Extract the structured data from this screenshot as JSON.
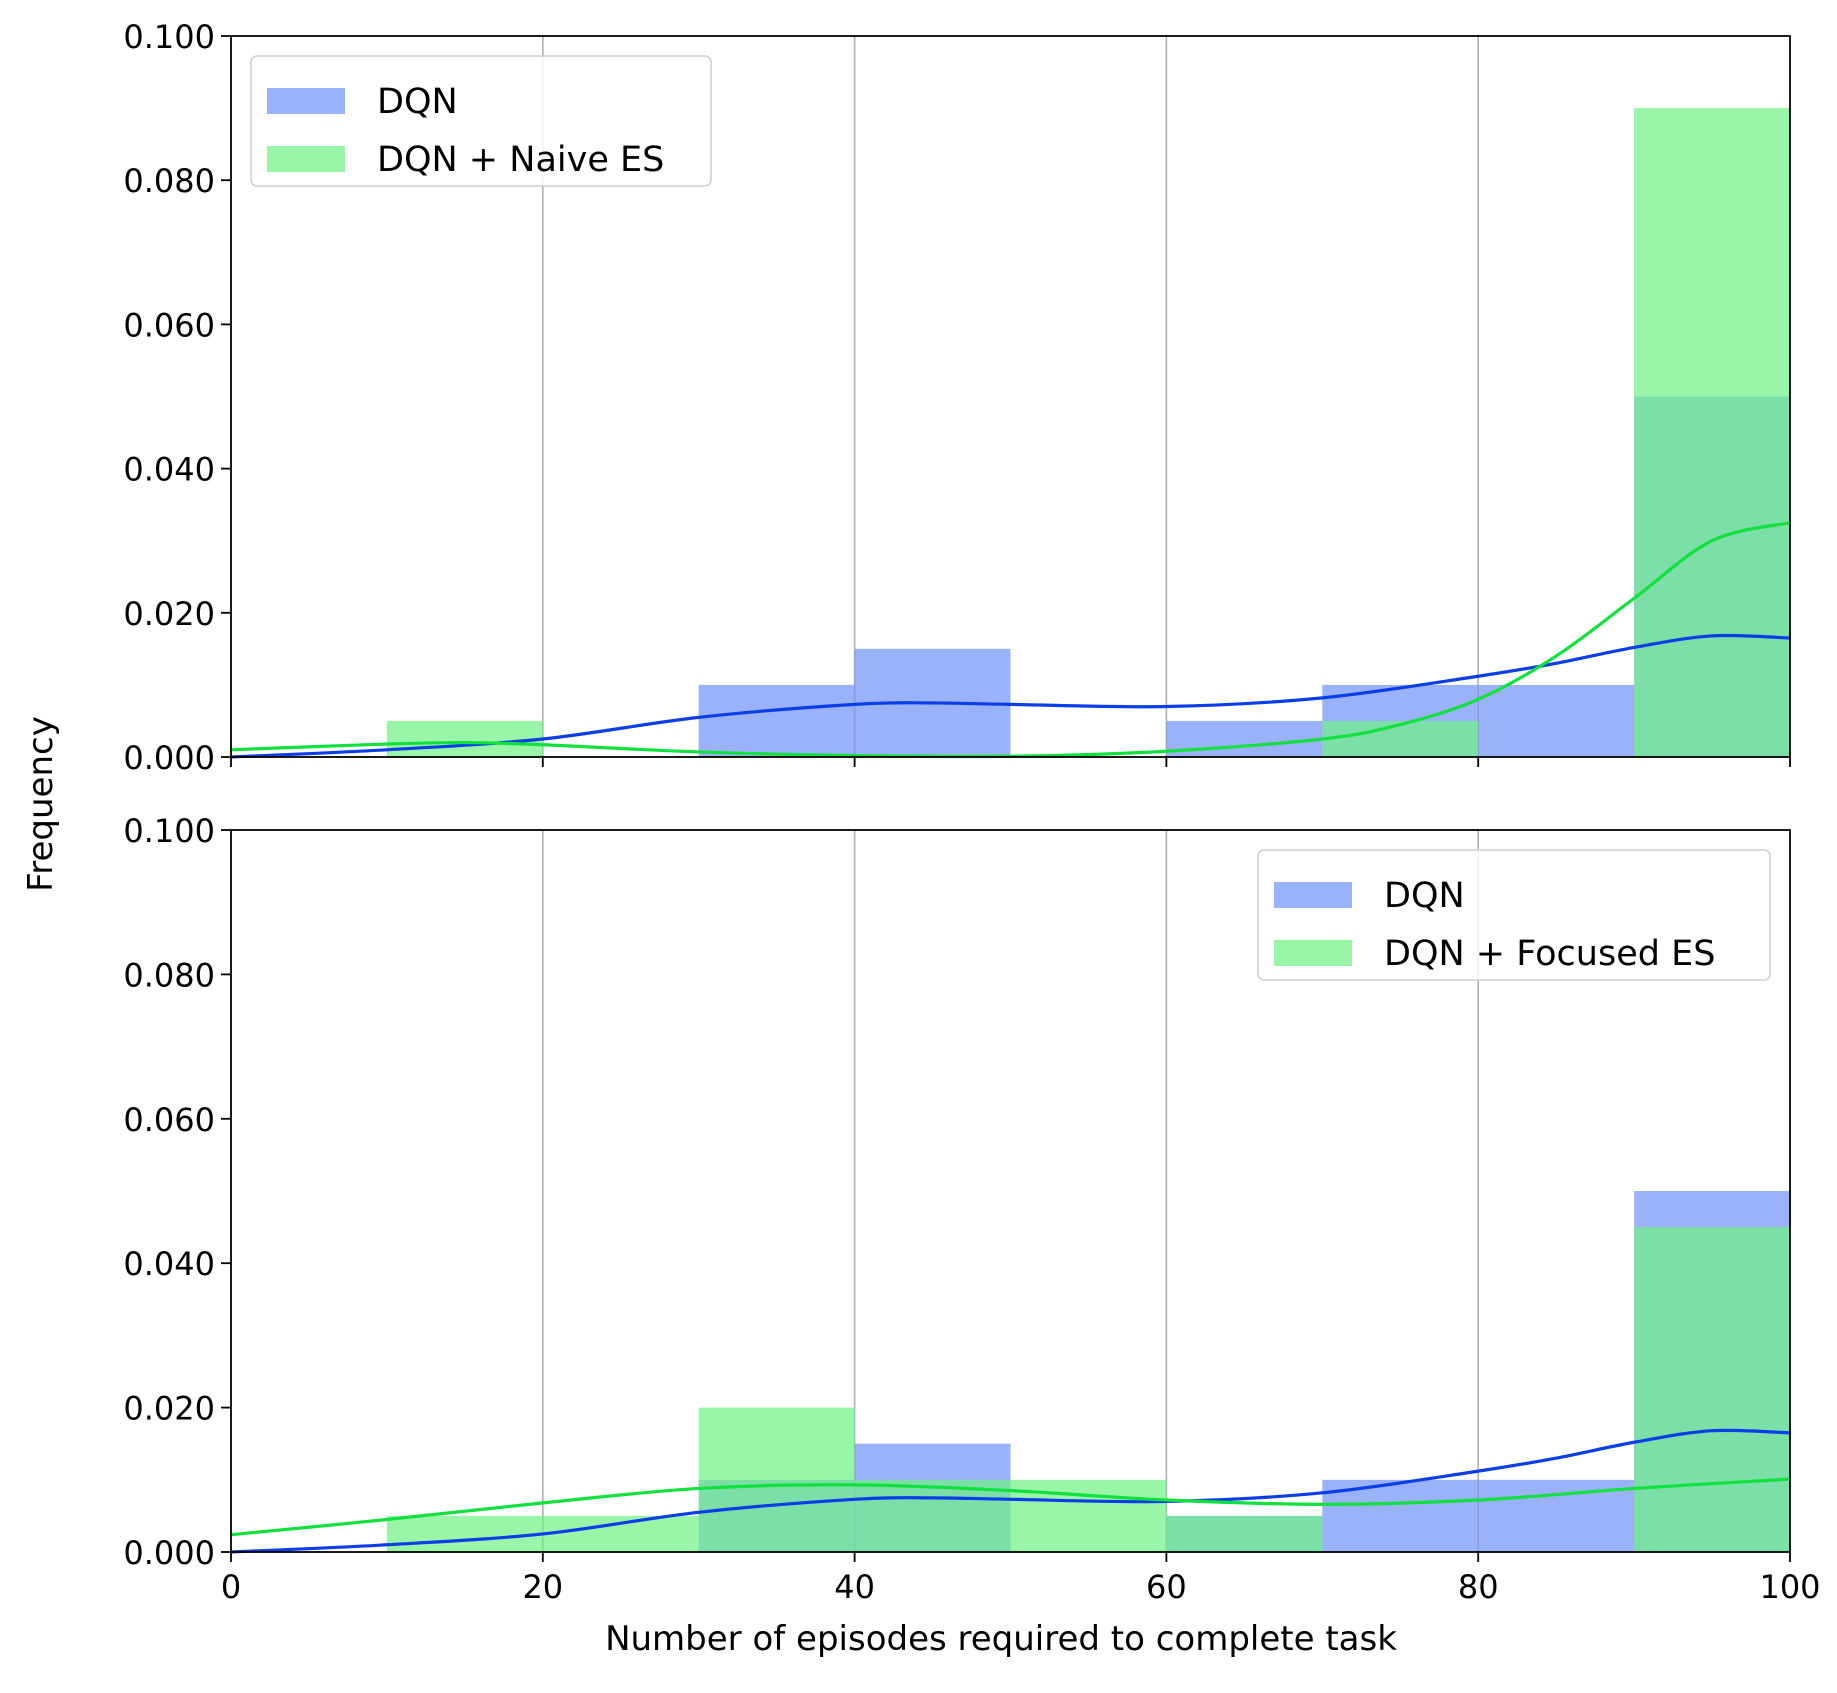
{
  "chart_data": [
    {
      "type": "histogram",
      "panel": "top",
      "bins": [
        [
          0,
          10
        ],
        [
          10,
          20
        ],
        [
          20,
          30
        ],
        [
          30,
          40
        ],
        [
          40,
          50
        ],
        [
          50,
          60
        ],
        [
          60,
          70
        ],
        [
          70,
          80
        ],
        [
          80,
          90
        ],
        [
          90,
          100
        ]
      ],
      "series": [
        {
          "name": "DQN",
          "color": "#6f91f7",
          "values": [
            0.0,
            0.0,
            0.0,
            0.01,
            0.015,
            0.0,
            0.005,
            0.01,
            0.01,
            0.05
          ],
          "kde": {
            "color": "#0b3ee6",
            "x": [
              0,
              10,
              20,
              30,
              40,
              45,
              50,
              60,
              70,
              80,
              85,
              90,
              95,
              100
            ],
            "y": [
              0.0,
              0.001,
              0.0025,
              0.0055,
              0.0073,
              0.0075,
              0.0073,
              0.007,
              0.0082,
              0.0112,
              0.013,
              0.0152,
              0.0168,
              0.0165
            ]
          }
        },
        {
          "name": "DQN + Naive ES",
          "color": "#6ef285",
          "values": [
            0.0,
            0.005,
            0.0,
            0.0,
            0.0,
            0.0,
            0.0,
            0.005,
            0.0,
            0.09
          ],
          "kde": {
            "color": "#12e03f",
            "x": [
              0,
              10,
              15,
              20,
              30,
              40,
              50,
              60,
              70,
              75,
              80,
              85,
              90,
              95,
              100
            ],
            "y": [
              0.001,
              0.0018,
              0.002,
              0.0017,
              0.0007,
              0.0002,
              0.0001,
              0.0008,
              0.0025,
              0.0045,
              0.008,
              0.014,
              0.022,
              0.03,
              0.0325
            ]
          }
        }
      ],
      "legend": {
        "position": "upper-left",
        "entries": [
          "DQN",
          "DQN + Naive ES"
        ]
      },
      "xlim": [
        0,
        100
      ],
      "ylim": [
        0,
        0.1
      ],
      "xticks": [
        0,
        20,
        40,
        60,
        80,
        100
      ],
      "yticks": [
        "0.000",
        "0.020",
        "0.040",
        "0.060",
        "0.080",
        "0.100"
      ],
      "show_xtick_labels": false,
      "grid": "x"
    },
    {
      "type": "histogram",
      "panel": "bottom",
      "bins": [
        [
          0,
          10
        ],
        [
          10,
          20
        ],
        [
          20,
          30
        ],
        [
          30,
          40
        ],
        [
          40,
          50
        ],
        [
          50,
          60
        ],
        [
          60,
          70
        ],
        [
          70,
          80
        ],
        [
          80,
          90
        ],
        [
          90,
          100
        ]
      ],
      "series": [
        {
          "name": "DQN",
          "color": "#6f91f7",
          "values": [
            0.0,
            0.0,
            0.0,
            0.01,
            0.015,
            0.0,
            0.005,
            0.01,
            0.01,
            0.05
          ],
          "kde": {
            "color": "#0b3ee6",
            "x": [
              0,
              10,
              20,
              30,
              40,
              45,
              50,
              60,
              70,
              80,
              85,
              90,
              95,
              100
            ],
            "y": [
              0.0,
              0.001,
              0.0025,
              0.0055,
              0.0073,
              0.0075,
              0.0073,
              0.007,
              0.0082,
              0.0112,
              0.013,
              0.0152,
              0.0168,
              0.0165
            ]
          }
        },
        {
          "name": "DQN + Focused ES",
          "color": "#6ef285",
          "values": [
            0.0,
            0.005,
            0.005,
            0.02,
            0.01,
            0.01,
            0.005,
            0.0,
            0.0,
            0.045
          ],
          "kde": {
            "color": "#12e03f",
            "x": [
              0,
              10,
              20,
              30,
              40,
              50,
              60,
              70,
              80,
              90,
              100
            ],
            "y": [
              0.0024,
              0.0045,
              0.0068,
              0.0088,
              0.0093,
              0.0085,
              0.0072,
              0.0066,
              0.0072,
              0.0088,
              0.0101
            ]
          }
        }
      ],
      "legend": {
        "position": "upper-right",
        "entries": [
          "DQN",
          "DQN + Focused ES"
        ]
      },
      "xlim": [
        0,
        100
      ],
      "ylim": [
        0,
        0.1
      ],
      "xticks": [
        0,
        20,
        40,
        60,
        80,
        100
      ],
      "yticks": [
        "0.000",
        "0.020",
        "0.040",
        "0.060",
        "0.080",
        "0.100"
      ],
      "show_xtick_labels": true,
      "grid": "x"
    }
  ],
  "shared_labels": {
    "xlabel": "Number of episodes required to complete task",
    "ylabel": "Frequency"
  }
}
